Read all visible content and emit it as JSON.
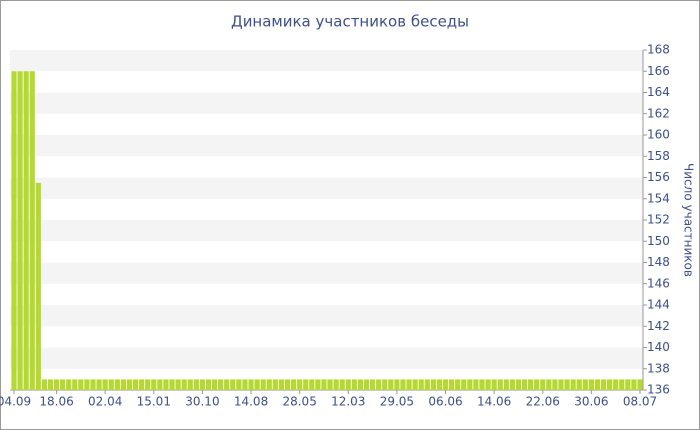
{
  "chart_data": {
    "type": "bar",
    "title": "Динамика участников беседы",
    "y_label": "Число участников",
    "categories": [
      "04.09",
      null,
      null,
      null,
      null,
      null,
      null,
      "18.06",
      null,
      null,
      null,
      null,
      null,
      null,
      null,
      "02.04",
      null,
      null,
      null,
      null,
      null,
      null,
      null,
      "15.01",
      null,
      null,
      null,
      null,
      null,
      null,
      null,
      "30.10",
      null,
      null,
      null,
      null,
      null,
      null,
      null,
      "14.08",
      null,
      null,
      null,
      null,
      null,
      null,
      null,
      "28.05",
      null,
      null,
      null,
      null,
      null,
      null,
      null,
      "12.03",
      null,
      null,
      null,
      null,
      null,
      null,
      null,
      "29.05",
      null,
      null,
      null,
      null,
      null,
      null,
      null,
      "06.06",
      null,
      null,
      null,
      null,
      null,
      null,
      null,
      "14.06",
      null,
      null,
      null,
      null,
      null,
      null,
      null,
      "22.06",
      null,
      null,
      null,
      null,
      null,
      null,
      null,
      "30.06",
      null,
      null,
      null,
      null,
      null,
      null,
      null,
      "08.07"
    ],
    "values": [
      166,
      166,
      166,
      166,
      155.5,
      137,
      137,
      137,
      137,
      137,
      137,
      137,
      137,
      137,
      137,
      137,
      137,
      137,
      137,
      137,
      137,
      137,
      137,
      137,
      137,
      137,
      137,
      137,
      137,
      137,
      137,
      137,
      137,
      137,
      137,
      137,
      137,
      137,
      137,
      137,
      137,
      137,
      137,
      137,
      137,
      137,
      137,
      137,
      137,
      137,
      137,
      137,
      137,
      137,
      137,
      137,
      137,
      137,
      137,
      137,
      137,
      137,
      137,
      137,
      137,
      137,
      137,
      137,
      137,
      137,
      137,
      137,
      137,
      137,
      137,
      137,
      137,
      137,
      137,
      137,
      137,
      137,
      137,
      137,
      137,
      137,
      137,
      137,
      137,
      137,
      137,
      137,
      137,
      137,
      137,
      137,
      137,
      137,
      137,
      137,
      137,
      137,
      137,
      137
    ],
    "color": "#b5d930",
    "ylim": [
      136,
      168
    ],
    "yticks": [
      136,
      138,
      140,
      142,
      144,
      146,
      148,
      150,
      152,
      154,
      156,
      158,
      160,
      162,
      164,
      166,
      168
    ],
    "grid": true
  }
}
